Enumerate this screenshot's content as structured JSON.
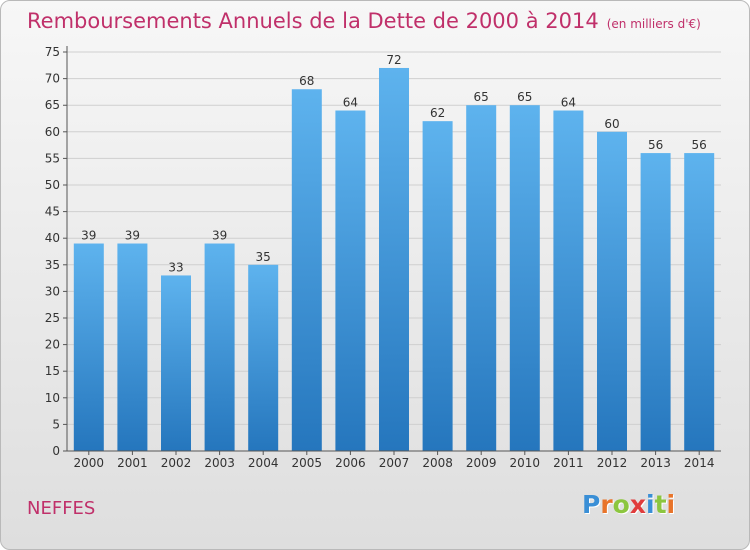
{
  "title": "Remboursements Annuels de la Dette de 2000 à 2014",
  "unit": "(en milliers d'€)",
  "commune": "NEFFES",
  "brand": {
    "letters": [
      "P",
      "r",
      "o",
      "x",
      "i",
      "t",
      "i"
    ],
    "colors": [
      "#3a8fd6",
      "#e8742a",
      "#8cc63f",
      "#e03c3c",
      "#3a8fd6",
      "#8cc63f",
      "#e8742a"
    ]
  },
  "colors": {
    "bar_light": "#5eb3ee",
    "bar_dark": "#2576bd",
    "title": "#c0306a"
  },
  "chart_data": {
    "type": "bar",
    "categories": [
      "2000",
      "2001",
      "2002",
      "2003",
      "2004",
      "2005",
      "2006",
      "2007",
      "2008",
      "2009",
      "2010",
      "2011",
      "2012",
      "2013",
      "2014"
    ],
    "values": [
      39,
      39,
      33,
      39,
      35,
      68,
      64,
      72,
      62,
      65,
      65,
      64,
      60,
      56,
      56
    ],
    "ylim": [
      0,
      75
    ],
    "yticks": [
      0,
      5,
      10,
      15,
      20,
      25,
      30,
      35,
      40,
      45,
      50,
      55,
      60,
      65,
      70,
      75
    ],
    "grid": true,
    "data_labels": true
  }
}
